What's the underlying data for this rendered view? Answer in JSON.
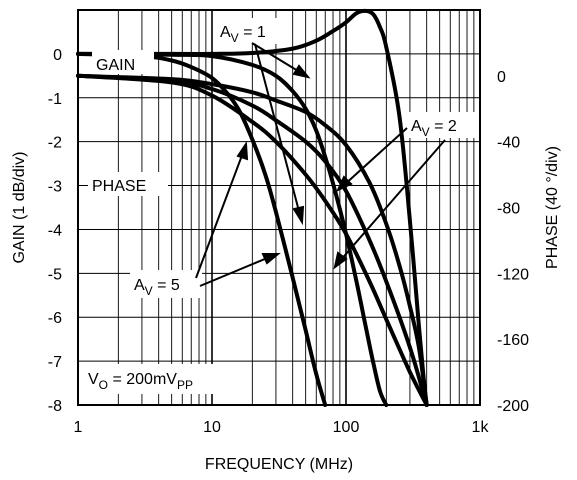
{
  "chart_data": {
    "type": "line",
    "x_scale": "log",
    "xlabel": "FREQUENCY (MHz)",
    "xlim": [
      1,
      1000
    ],
    "x_ticks": [
      "1",
      "10",
      "100",
      "1k"
    ],
    "ylabel_left": "GAIN (1 dB/div)",
    "ylim_left": [
      -8,
      1
    ],
    "y_ticks_left": [
      "0",
      "-1",
      "-2",
      "-3",
      "-4",
      "-5",
      "-6",
      "-7",
      "-8"
    ],
    "ylabel_right": "PHASE (40 °/div)",
    "ylim_right": [
      -200,
      40
    ],
    "y_ticks_right": [
      "0",
      "-40",
      "-80",
      "-120",
      "-160",
      "-200"
    ],
    "grid": true,
    "gain_label": "GAIN",
    "phase_label": "PHASE",
    "av1_label": {
      "main": "A",
      "sub": "V",
      "rest": " = 1"
    },
    "av2_label": {
      "main": "A",
      "sub": "V",
      "rest": " = 2"
    },
    "av5_label": {
      "main": "A",
      "sub": "V",
      "rest": " = 5"
    },
    "vo_label": {
      "main": "V",
      "sub1": "O",
      "mid": " = 200mV",
      "sub2": "PP"
    },
    "series": [
      {
        "axis": "gain",
        "gain": "AV = 1",
        "x": [
          1,
          5,
          10,
          20,
          40,
          60,
          80,
          100,
          120,
          140,
          160,
          180,
          200,
          250,
          300,
          350,
          380,
          400
        ],
        "y": [
          0,
          0,
          0,
          0.02,
          0.12,
          0.3,
          0.52,
          0.72,
          0.93,
          0.98,
          0.9,
          0.6,
          0.15,
          -1.4,
          -3.8,
          -6.2,
          -7.4,
          -8
        ]
      },
      {
        "axis": "gain",
        "gain": "AV = 2",
        "x": [
          1,
          5,
          10,
          20,
          30,
          40,
          50,
          60,
          70,
          80,
          100,
          120,
          140,
          160,
          180,
          200
        ],
        "y": [
          0,
          -0.02,
          -0.05,
          -0.25,
          -0.5,
          -0.85,
          -1.25,
          -1.75,
          -2.35,
          -2.95,
          -4.1,
          -5.2,
          -6.2,
          -7.05,
          -7.7,
          -8
        ]
      },
      {
        "axis": "gain",
        "gain": "AV = 5",
        "x": [
          1,
          3,
          5,
          7,
          10,
          13,
          16,
          20,
          25,
          30,
          40,
          50,
          60,
          70
        ],
        "y": [
          0,
          -0.05,
          -0.15,
          -0.3,
          -0.55,
          -0.9,
          -1.3,
          -1.95,
          -2.75,
          -3.6,
          -5.1,
          -6.3,
          -7.3,
          -8
        ]
      },
      {
        "axis": "phase",
        "gain": "AV = 1",
        "x": [
          1,
          5,
          10,
          20,
          30,
          50,
          70,
          100,
          150,
          200,
          250,
          300,
          350,
          400
        ],
        "y": [
          0,
          -2,
          -5,
          -10,
          -15,
          -22,
          -30,
          -42,
          -65,
          -90,
          -115,
          -140,
          -165,
          -200
        ]
      },
      {
        "axis": "phase",
        "gain": "AV = 2",
        "x": [
          1,
          5,
          10,
          20,
          30,
          50,
          70,
          100,
          150,
          200,
          300,
          400
        ],
        "y": [
          0,
          -3,
          -8,
          -18,
          -27,
          -40,
          -52,
          -70,
          -100,
          -125,
          -165,
          -200
        ]
      },
      {
        "axis": "phase",
        "gain": "AV = 5",
        "x": [
          1,
          5,
          10,
          20,
          30,
          50,
          70,
          100,
          150,
          200,
          300,
          400
        ],
        "y": [
          0,
          -4,
          -12,
          -28,
          -40,
          -60,
          -76,
          -96,
          -125,
          -148,
          -180,
          -200
        ]
      }
    ]
  }
}
